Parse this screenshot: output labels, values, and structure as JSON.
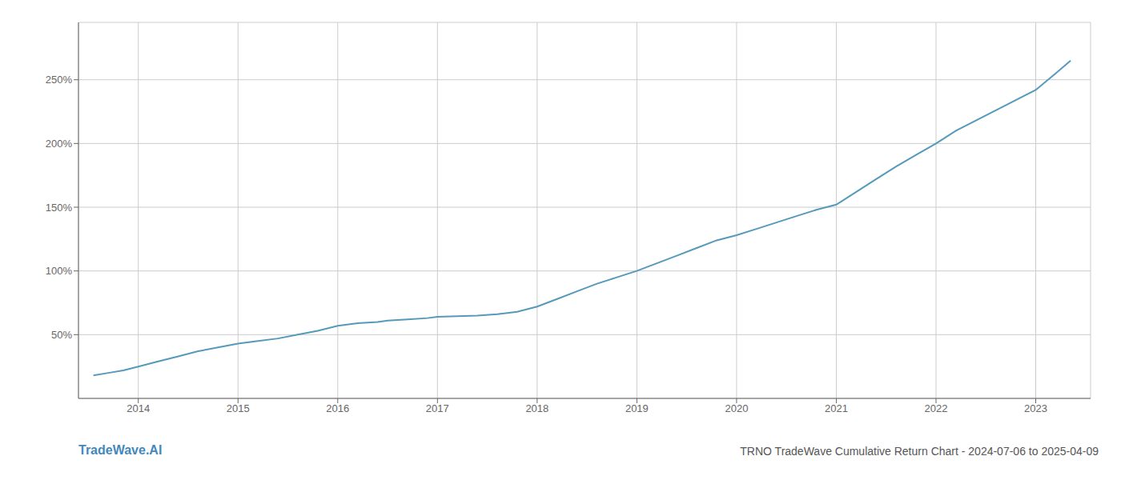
{
  "chart_data": {
    "type": "line",
    "title": "TRNO TradeWave Cumulative Return Chart - 2024-07-06 to 2025-04-09",
    "annotations": [
      "TradeWave.AI"
    ],
    "color": "#5599bb",
    "grid": true,
    "x": [
      2013.55,
      2013.7,
      2013.85,
      2014.0,
      2014.2,
      2014.4,
      2014.6,
      2014.8,
      2015.0,
      2015.2,
      2015.4,
      2015.6,
      2015.8,
      2016.0,
      2016.2,
      2016.4,
      2016.5,
      2016.7,
      2016.9,
      2017.0,
      2017.2,
      2017.4,
      2017.6,
      2017.8,
      2018.0,
      2018.2,
      2018.4,
      2018.6,
      2018.8,
      2019.0,
      2019.2,
      2019.4,
      2019.6,
      2019.8,
      2020.0,
      2020.2,
      2020.4,
      2020.6,
      2020.8,
      2021.0,
      2021.2,
      2021.4,
      2021.6,
      2021.8,
      2022.0,
      2022.2,
      2022.4,
      2022.6,
      2022.8,
      2023.0,
      2023.2,
      2023.35
    ],
    "values": [
      18,
      20,
      22,
      25,
      29,
      33,
      37,
      40,
      43,
      45,
      47,
      50,
      53,
      57,
      59,
      60,
      61,
      62,
      63,
      64,
      64.5,
      65,
      66,
      68,
      72,
      78,
      84,
      90,
      95,
      100,
      106,
      112,
      118,
      124,
      128,
      133,
      138,
      143,
      148,
      152,
      162,
      172,
      182,
      191,
      200,
      210,
      218,
      226,
      234,
      242,
      255,
      265
    ],
    "xlim": [
      2013.4,
      2023.55
    ],
    "xticks": [
      2014,
      2015,
      2016,
      2017,
      2018,
      2019,
      2020,
      2021,
      2022,
      2023
    ],
    "ylim": [
      0,
      295
    ],
    "yticks": [
      {
        "value": 50,
        "label": "50%"
      },
      {
        "value": 100,
        "label": "100%"
      },
      {
        "value": 150,
        "label": "150%"
      },
      {
        "value": 200,
        "label": "200%"
      },
      {
        "value": 250,
        "label": "250%"
      }
    ]
  }
}
